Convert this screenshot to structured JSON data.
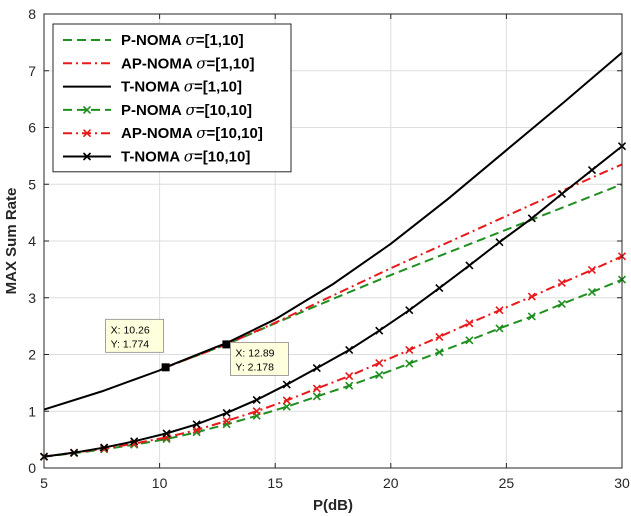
{
  "chart_data": {
    "type": "line",
    "xlabel": "P(dB)",
    "ylabel": "MAX Sum Rate",
    "xlim": [
      5,
      30
    ],
    "ylim": [
      0,
      8
    ],
    "xticks": [
      5,
      10,
      15,
      20,
      25,
      30
    ],
    "yticks": [
      0,
      1,
      2,
      3,
      4,
      5,
      6,
      7,
      8
    ],
    "grid": true,
    "legend_position": "top-left",
    "series": [
      {
        "name": "P-NOMA σ=[1,10]",
        "legend_main": "P-NOMA ",
        "legend_sigma": "σ",
        "legend_rest": "=[1,10]",
        "color": "#1f8f1f",
        "dash": "dash",
        "marker": "none",
        "x": [
          10.26,
          12.89,
          15,
          17.5,
          20,
          22.5,
          25,
          27.5,
          30
        ],
        "y": [
          1.774,
          2.178,
          2.55,
          2.98,
          3.4,
          3.8,
          4.2,
          4.6,
          5.0
        ]
      },
      {
        "name": "AP-NOMA σ=[1,10]",
        "legend_main": "AP-NOMA ",
        "legend_sigma": "σ",
        "legend_rest": "=[1,10]",
        "color": "#e8191b",
        "dash": "dashdot",
        "marker": "none",
        "x": [
          10.26,
          12.89,
          15,
          17.5,
          20,
          22.5,
          25,
          27.5,
          30
        ],
        "y": [
          1.774,
          2.178,
          2.56,
          3.04,
          3.52,
          3.98,
          4.44,
          4.9,
          5.35
        ]
      },
      {
        "name": "T-NOMA σ=[1,10]",
        "legend_main": "T-NOMA ",
        "legend_sigma": "σ",
        "legend_rest": "=[1,10]",
        "color": "#000000",
        "dash": "solid",
        "marker": "none",
        "x": [
          5,
          7.5,
          10,
          10.26,
          12.5,
          12.89,
          15,
          17.5,
          20,
          22.5,
          25,
          27.5,
          30
        ],
        "y": [
          1.03,
          1.35,
          1.72,
          1.774,
          2.14,
          2.2,
          2.62,
          3.24,
          3.95,
          4.75,
          5.6,
          6.45,
          7.32
        ]
      },
      {
        "name": "P-NOMA σ=[10,10]",
        "legend_main": "P-NOMA ",
        "legend_sigma": "σ",
        "legend_rest": "=[10,10]",
        "color": "#1f8f1f",
        "dash": "dash",
        "marker": "x",
        "x": [
          5,
          6.3,
          7.6,
          8.9,
          10.3,
          11.6,
          12.9,
          14.2,
          15.5,
          16.8,
          18.2,
          19.5,
          20.8,
          22.1,
          23.4,
          24.7,
          26.1,
          27.4,
          28.7,
          30
        ],
        "y": [
          0.2,
          0.26,
          0.33,
          0.41,
          0.51,
          0.63,
          0.77,
          0.92,
          1.08,
          1.26,
          1.45,
          1.64,
          1.84,
          2.04,
          2.25,
          2.46,
          2.67,
          2.89,
          3.1,
          3.32
        ]
      },
      {
        "name": "AP-NOMA σ=[10,10]",
        "legend_main": "AP-NOMA ",
        "legend_sigma": "σ",
        "legend_rest": "=[10,10]",
        "color": "#e8191b",
        "dash": "dashdot",
        "marker": "x",
        "x": [
          5,
          6.3,
          7.6,
          8.9,
          10.3,
          11.6,
          12.9,
          14.2,
          15.5,
          16.8,
          18.2,
          19.5,
          20.8,
          22.1,
          23.4,
          24.7,
          26.1,
          27.4,
          28.7,
          30
        ],
        "y": [
          0.2,
          0.27,
          0.34,
          0.43,
          0.54,
          0.67,
          0.83,
          1.0,
          1.19,
          1.4,
          1.62,
          1.85,
          2.08,
          2.31,
          2.55,
          2.78,
          3.02,
          3.26,
          3.49,
          3.73
        ]
      },
      {
        "name": "T-NOMA σ=[10,10]",
        "legend_main": "T-NOMA ",
        "legend_sigma": "σ",
        "legend_rest": "=[10,10]",
        "color": "#000000",
        "dash": "solid",
        "marker": "x",
        "x": [
          5,
          6.3,
          7.6,
          8.9,
          10.3,
          11.6,
          12.9,
          14.2,
          15.5,
          16.8,
          18.2,
          19.5,
          20.8,
          22.1,
          23.4,
          24.7,
          26.1,
          27.4,
          28.7,
          30
        ],
        "y": [
          0.2,
          0.27,
          0.36,
          0.47,
          0.61,
          0.77,
          0.97,
          1.2,
          1.47,
          1.76,
          2.08,
          2.42,
          2.78,
          3.17,
          3.57,
          3.98,
          4.4,
          4.83,
          5.25,
          5.67
        ]
      }
    ],
    "annotations": [
      {
        "x": 10.26,
        "y": 1.774,
        "xtext": "X: 10.26",
        "ytext": "Y: 1.774",
        "side": "upper-left"
      },
      {
        "x": 12.89,
        "y": 2.178,
        "xtext": "X: 12.89",
        "ytext": "Y: 2.178",
        "side": "lower-right"
      }
    ]
  }
}
